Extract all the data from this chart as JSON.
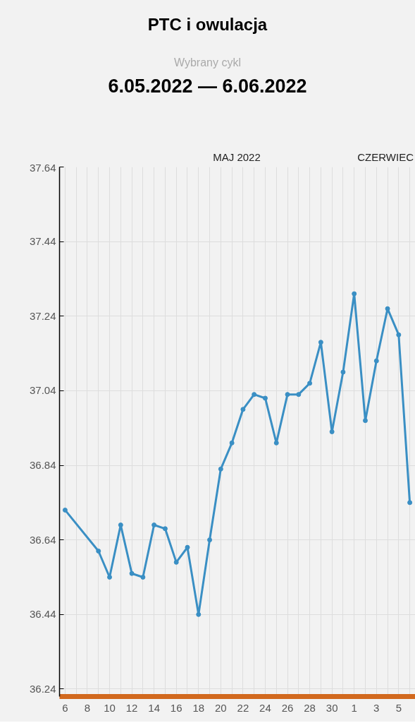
{
  "chart_data": {
    "type": "line",
    "title": "PTC i owulacja",
    "subtitle": "6.05.2022 — 6.06.2022",
    "annotations": [
      "Wybrany cykl",
      "MAJ 2022",
      "CZERWIEC"
    ],
    "x": [
      "2022-05-06",
      "2022-05-09",
      "2022-05-10",
      "2022-05-11",
      "2022-05-12",
      "2022-05-13",
      "2022-05-14",
      "2022-05-15",
      "2022-05-16",
      "2022-05-17",
      "2022-05-18",
      "2022-05-19",
      "2022-05-20",
      "2022-05-21",
      "2022-05-22",
      "2022-05-23",
      "2022-05-24",
      "2022-05-25",
      "2022-05-26",
      "2022-05-27",
      "2022-05-28",
      "2022-05-29",
      "2022-05-30",
      "2022-05-31",
      "2022-06-01",
      "2022-06-02",
      "2022-06-03",
      "2022-06-04",
      "2022-06-05",
      "2022-06-06"
    ],
    "series": [
      {
        "color": "#3a8fc4",
        "values": [
          36.72,
          36.61,
          36.54,
          36.68,
          36.55,
          36.54,
          36.68,
          36.67,
          36.58,
          36.62,
          36.44,
          36.64,
          36.83,
          36.9,
          36.99,
          37.03,
          37.02,
          36.9,
          37.03,
          37.03,
          37.06,
          37.17,
          36.93,
          37.09,
          37.3,
          36.96,
          37.12,
          37.26,
          37.19,
          36.74
        ]
      }
    ],
    "xlim": [
      "2022-05-05T12:00",
      "2022-06-06T12:00"
    ],
    "xticks": [
      {
        "value": "2022-05-06",
        "label": "6"
      },
      {
        "value": "2022-05-07",
        "label": null
      },
      {
        "value": "2022-05-08",
        "label": "8"
      },
      {
        "value": "2022-05-09",
        "label": null
      },
      {
        "value": "2022-05-10",
        "label": "10"
      },
      {
        "value": "2022-05-11",
        "label": null
      },
      {
        "value": "2022-05-12",
        "label": "12"
      },
      {
        "value": "2022-05-13",
        "label": null
      },
      {
        "value": "2022-05-14",
        "label": "14"
      },
      {
        "value": "2022-05-15",
        "label": null
      },
      {
        "value": "2022-05-16",
        "label": "16"
      },
      {
        "value": "2022-05-17",
        "label": null
      },
      {
        "value": "2022-05-18",
        "label": "18"
      },
      {
        "value": "2022-05-19",
        "label": null
      },
      {
        "value": "2022-05-20",
        "label": "20"
      },
      {
        "value": "2022-05-21",
        "label": null
      },
      {
        "value": "2022-05-22",
        "label": "22"
      },
      {
        "value": "2022-05-23",
        "label": null
      },
      {
        "value": "2022-05-24",
        "label": "24"
      },
      {
        "value": "2022-05-25",
        "label": null
      },
      {
        "value": "2022-05-26",
        "label": "26"
      },
      {
        "value": "2022-05-27",
        "label": null
      },
      {
        "value": "2022-05-28",
        "label": "28"
      },
      {
        "value": "2022-05-29",
        "label": null
      },
      {
        "value": "2022-05-30",
        "label": "30"
      },
      {
        "value": "2022-05-31",
        "label": null
      },
      {
        "value": "2022-06-01",
        "label": "1"
      },
      {
        "value": "2022-06-02",
        "label": null
      },
      {
        "value": "2022-06-03",
        "label": "3"
      },
      {
        "value": "2022-06-04",
        "label": null
      },
      {
        "value": "2022-06-05",
        "label": "5"
      },
      {
        "value": "2022-06-06",
        "label": null
      }
    ],
    "ylim": [
      36.22,
      37.64
    ],
    "yticks": [
      {
        "value": 36.24,
        "label": "36.24"
      },
      {
        "value": 36.44,
        "label": "36.44"
      },
      {
        "value": 36.64,
        "label": "36.64"
      },
      {
        "value": 36.84,
        "label": "36.84"
      },
      {
        "value": 37.04,
        "label": "37.04"
      },
      {
        "value": 37.24,
        "label": "37.24"
      },
      {
        "value": 37.44,
        "label": "37.44"
      },
      {
        "value": 37.64,
        "label": "37.64"
      }
    ],
    "grid": true,
    "marker": "circle",
    "line_style": "solid"
  }
}
